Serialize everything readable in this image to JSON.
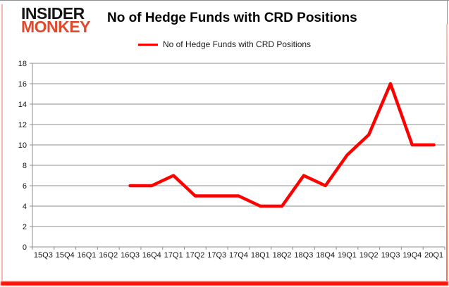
{
  "logo": {
    "line1": "INSIDER",
    "line2": "MONKEY",
    "line1_color": "#151515",
    "line2_color": "#dd4a2c"
  },
  "title": "No of Hedge Funds with CRD Positions",
  "legend": {
    "label": "No of Hedge Funds with CRD Positions",
    "color": "#ff0000"
  },
  "chart_data": {
    "type": "line",
    "title": "No of Hedge Funds with CRD Positions",
    "categories": [
      "15Q3",
      "15Q4",
      "16Q1",
      "16Q2",
      "16Q3",
      "16Q4",
      "17Q1",
      "17Q2",
      "17Q3",
      "17Q4",
      "18Q1",
      "18Q2",
      "18Q3",
      "18Q4",
      "19Q1",
      "19Q2",
      "19Q3",
      "19Q4",
      "20Q1"
    ],
    "series": [
      {
        "name": "No of Hedge Funds with CRD Positions",
        "color": "#ff0000",
        "values": [
          null,
          null,
          null,
          null,
          6,
          6,
          7,
          5,
          5,
          5,
          4,
          4,
          7,
          6,
          9,
          11,
          16,
          10,
          10
        ]
      }
    ],
    "xlabel": "",
    "ylabel": "",
    "ylim": [
      0,
      18
    ],
    "ytick_step": 2,
    "grid": "horizontal",
    "gridline_color": "#8e8e8e",
    "axis_text_color": "#141414",
    "legend_position": "top-center"
  }
}
